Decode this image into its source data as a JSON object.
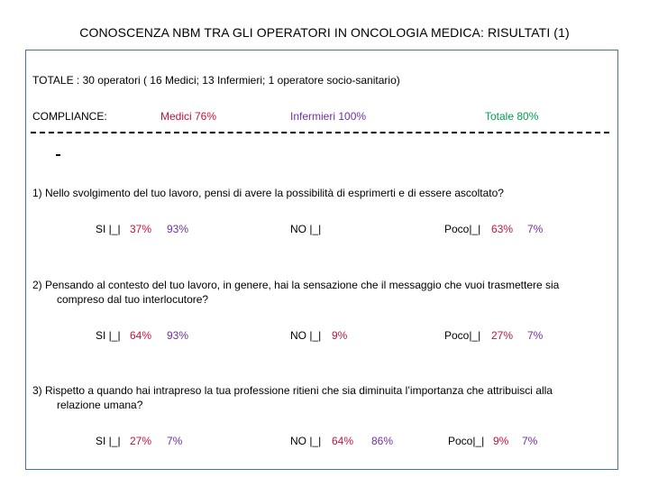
{
  "title": "CONOSCENZA NBM  TRA GLI OPERATORI IN ONCOLOGIA MEDICA: RISULTATI (1)",
  "totale": "TOTALE : 30 operatori  ( 16 Medici; 13 Infermieri; 1 operatore socio-sanitario)",
  "compliance": {
    "label": "COMPLIANCE:",
    "medici": "Medici 76%",
    "infermieri": "Infermieri 100%",
    "totale": "Totale 80%"
  },
  "colors": {
    "red": "#c0143c",
    "purple": "#7030a0",
    "green": "#00a050",
    "border": "#4a6fa5"
  },
  "questions": [
    {
      "line1": "1) Nello svolgimento del tuo lavoro, pensi di avere la possibilità di esprimerti e di essere ascoltato?",
      "line2": "",
      "si_label": "SI |_|",
      "si_red": "37%",
      "si_purple": "93%",
      "no_label": "NO |_|",
      "no_red": "",
      "no_purple": "",
      "poco_label": "Poco|_|",
      "poco_red": "63%",
      "poco_purple": "7%"
    },
    {
      "line1": "2) Pensando al contesto del tuo lavoro, in genere, hai la sensazione che il messaggio che vuoi trasmettere sia",
      "line2": "compreso dal tuo interlocutore?",
      "si_label": "SI |_|",
      "si_red": "64%",
      "si_purple": "93%",
      "no_label": "NO |_|",
      "no_red": "9%",
      "no_purple": "",
      "poco_label": "Poco|_|",
      "poco_red": "27%",
      "poco_purple": "7%"
    },
    {
      "line1": "3) Rispetto a quando hai intrapreso la tua professione ritieni che sia diminuita  l’importanza che  attribuisci alla",
      "line2": "relazione umana?",
      "si_label": "SI |_|",
      "si_red": "27%",
      "si_purple": "7%",
      "no_label": "NO |_|",
      "no_red": "64%",
      "no_purple": "86%",
      "poco_label": "Poco|_|",
      "poco_red": "9%",
      "poco_purple": "7%"
    }
  ]
}
